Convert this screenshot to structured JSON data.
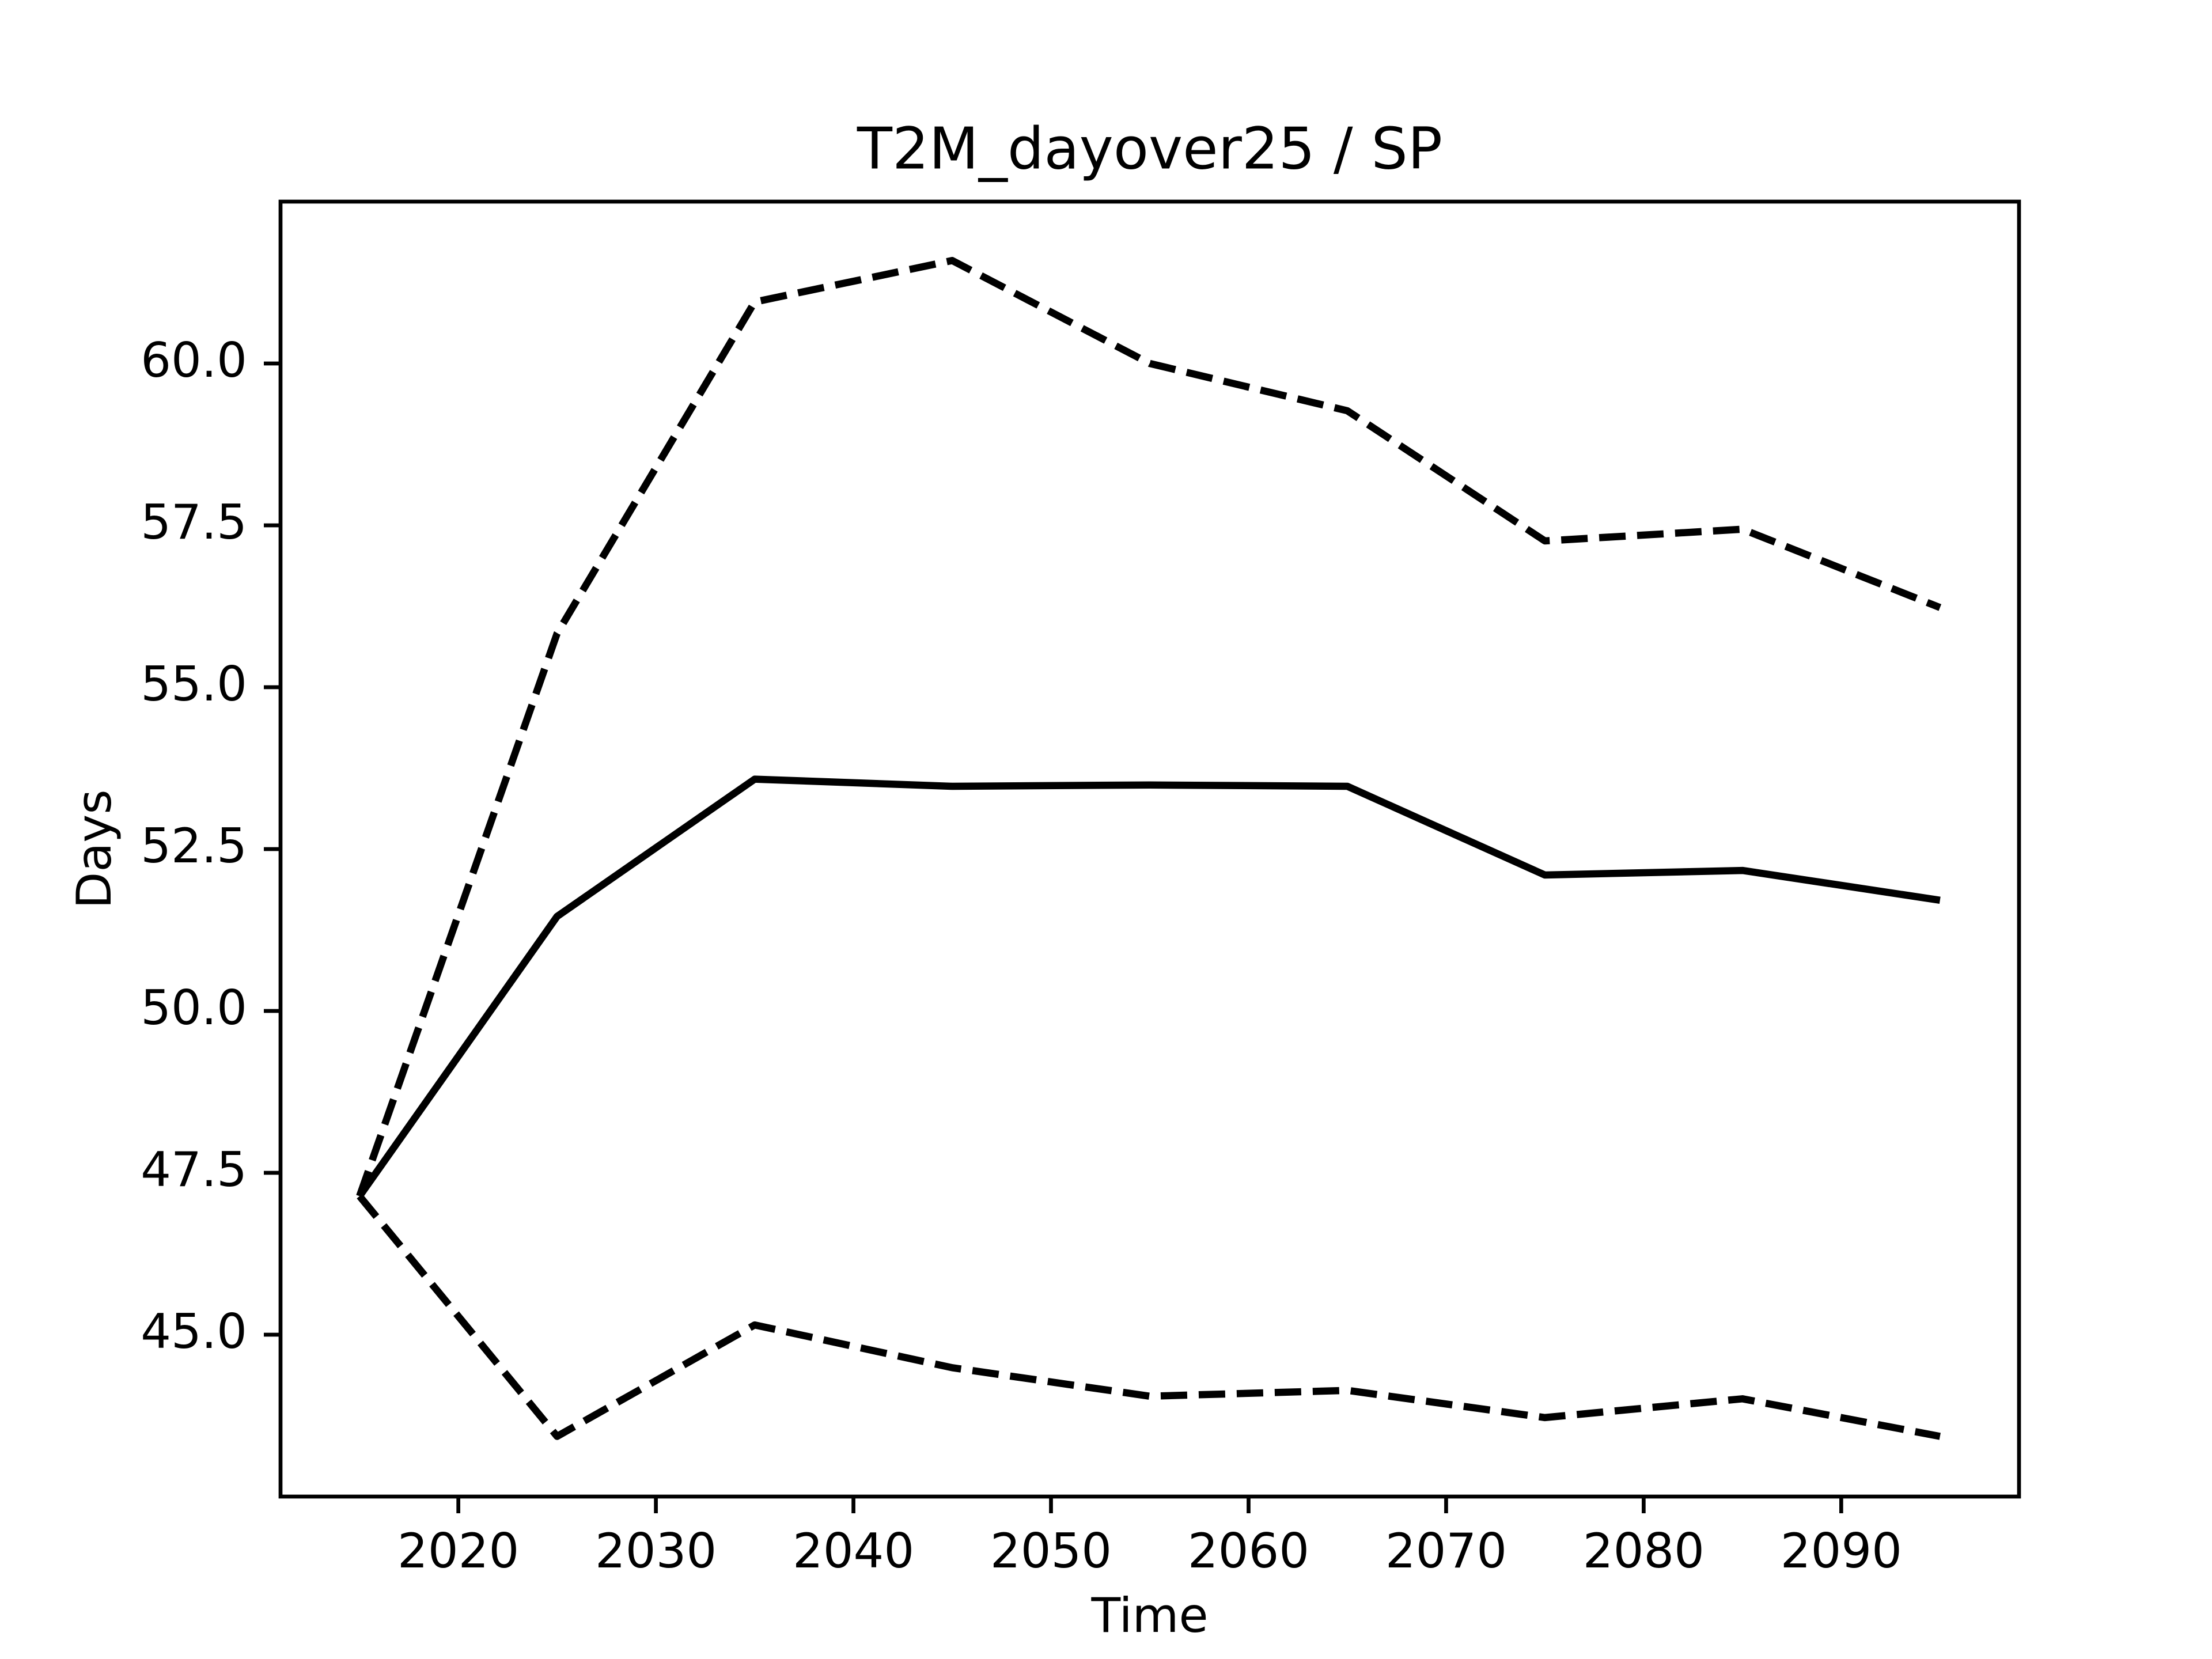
{
  "chart_data": {
    "type": "line",
    "title": "T2M_dayover25 / SP",
    "x_label": "Time",
    "y_label": "Days",
    "x": [
      2015,
      2025,
      2035,
      2045,
      2055,
      2065,
      2075,
      2085,
      2095
    ],
    "series": [
      {
        "color": "#000000",
        "dashed": false,
        "values": [
          47.14,
          51.46,
          53.58,
          53.47,
          53.49,
          53.47,
          52.1,
          52.17,
          51.71
        ]
      },
      {
        "color": "#000000",
        "dashed": true,
        "values": [
          47.14,
          55.83,
          60.95,
          61.59,
          60.0,
          59.27,
          57.26,
          57.44,
          56.23
        ]
      },
      {
        "color": "#000000",
        "dashed": true,
        "values": [
          47.14,
          43.43,
          45.15,
          44.49,
          44.05,
          44.14,
          43.72,
          44.01,
          43.43
        ]
      }
    ],
    "xlim": [
      2011,
      2099
    ],
    "xticks": [
      2020,
      2030,
      2040,
      2050,
      2060,
      2070,
      2080,
      2090
    ],
    "ylim": [
      42.5,
      62.5
    ],
    "yticks": [
      {
        "value": 45,
        "label": "45.0"
      },
      {
        "value": 47.5,
        "label": "47.5"
      },
      {
        "value": 50,
        "label": "50.0"
      },
      {
        "value": 52.5,
        "label": "52.5"
      },
      {
        "value": 55,
        "label": "55.0"
      },
      {
        "value": 57.5,
        "label": "57.5"
      },
      {
        "value": 60,
        "label": "60.0"
      }
    ],
    "grid": false
  }
}
